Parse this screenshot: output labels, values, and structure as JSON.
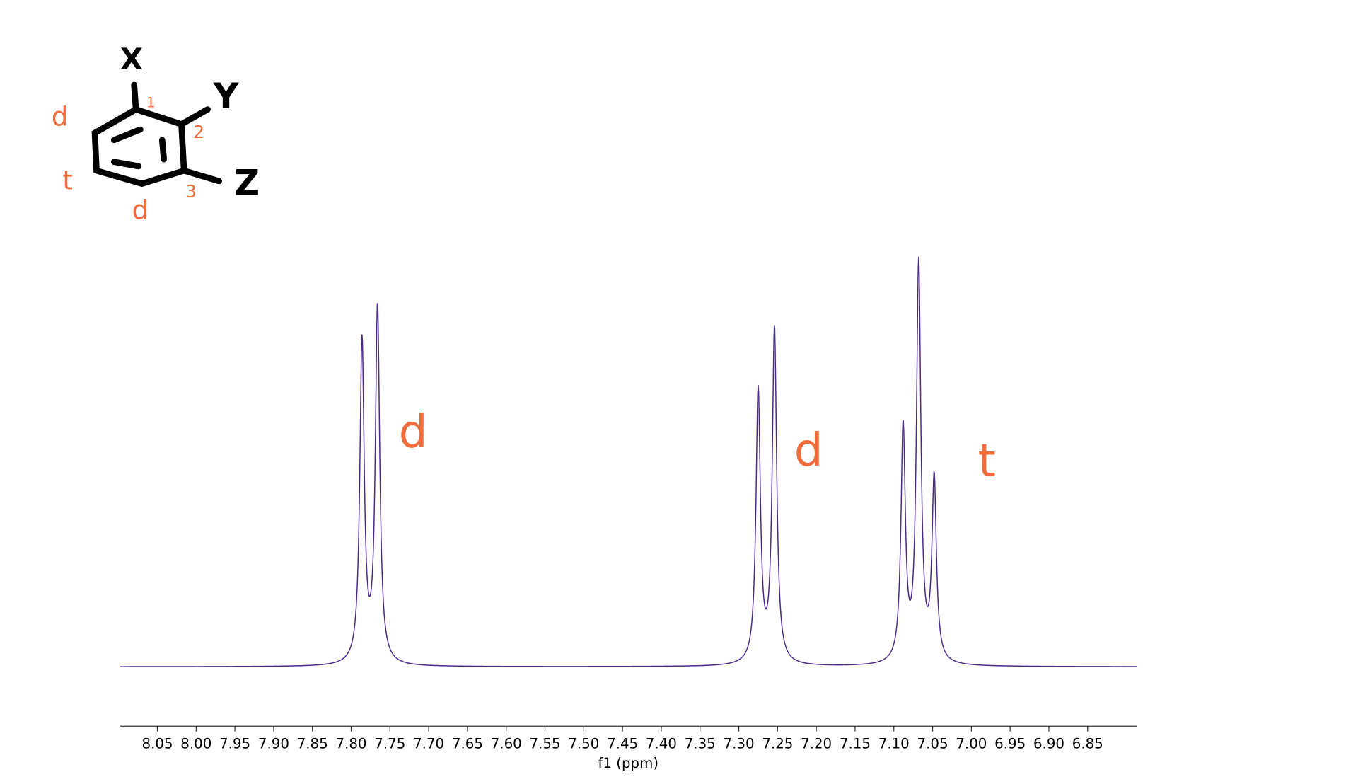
{
  "chart_data": {
    "type": "spectrum",
    "peaks": {
      "x": [
        7.786,
        7.766,
        7.275,
        7.254,
        7.088,
        7.068,
        7.048
      ],
      "values": [
        81,
        89.5,
        68.6,
        84.2,
        58.9,
        100,
        45.9
      ]
    },
    "color": "#4b2a8a",
    "xlabel": "f1 (ppm)",
    "xlim": [
      8.098,
      6.786
    ],
    "xticks": [
      8.05,
      {
        "value": 8.0,
        "label": "8.00"
      },
      7.95,
      {
        "value": 7.9,
        "label": "7.90"
      },
      7.85,
      {
        "value": 7.8,
        "label": "7.80"
      },
      7.75,
      {
        "value": 7.7,
        "label": "7.70"
      },
      7.65,
      {
        "value": 7.6,
        "label": "7.60"
      },
      7.55,
      {
        "value": 7.5,
        "label": "7.50"
      },
      7.45,
      {
        "value": 7.4,
        "label": "7.40"
      },
      7.35,
      {
        "value": 7.3,
        "label": "7.30"
      },
      7.25,
      {
        "value": 7.2,
        "label": "7.20"
      },
      7.15,
      {
        "value": 7.1,
        "label": "7.10"
      },
      7.05,
      {
        "value": 7.0,
        "label": "7.00"
      },
      6.95,
      {
        "value": 6.9,
        "label": "6.90"
      },
      6.85
    ],
    "annotations": [
      {
        "text": "d",
        "x": 7.72
      },
      {
        "text": "d",
        "x": 7.21
      },
      {
        "text": "t",
        "x": 6.98
      }
    ],
    "structure": {
      "substituents": [
        "X",
        "Y",
        "Z"
      ],
      "positions": [
        "1",
        "2",
        "3"
      ],
      "multiplicities": [
        "d",
        "t",
        "d"
      ]
    }
  }
}
